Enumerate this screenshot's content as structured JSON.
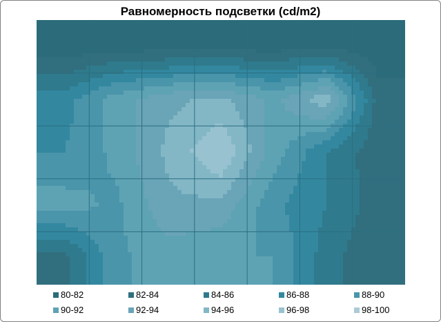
{
  "chart_data": {
    "type": "heatmap",
    "title": "Равномерность подсветки (cd/m2)",
    "xlabel": "",
    "ylabel": "",
    "rows": 5,
    "cols": 7,
    "z": [
      [
        80.5,
        81.0,
        81.0,
        81.0,
        81.0,
        81.5,
        80.5
      ],
      [
        87.0,
        91.0,
        93.5,
        94.5,
        91.5,
        95.5,
        83.0
      ],
      [
        88.0,
        90.5,
        94.5,
        98.0,
        91.0,
        86.0,
        82.5
      ],
      [
        91.0,
        89.5,
        93.5,
        93.5,
        88.5,
        86.0,
        83.0
      ],
      [
        83.0,
        89.5,
        91.0,
        90.0,
        90.0,
        85.0,
        82.0
      ]
    ],
    "legend": [
      "80-82",
      "82-84",
      "84-86",
      "86-88",
      "88-90",
      "90-92",
      "92-94",
      "94-96",
      "96-98",
      "98-100"
    ],
    "colors": [
      "#2c6b79",
      "#316f7e",
      "#2f7a8c",
      "#3388a0",
      "#4a95aa",
      "#5ea3b4",
      "#6aa4b7",
      "#83b7c6",
      "#98c2cf",
      "#abcbd6"
    ],
    "grid": true,
    "legend_position": "bottom"
  }
}
